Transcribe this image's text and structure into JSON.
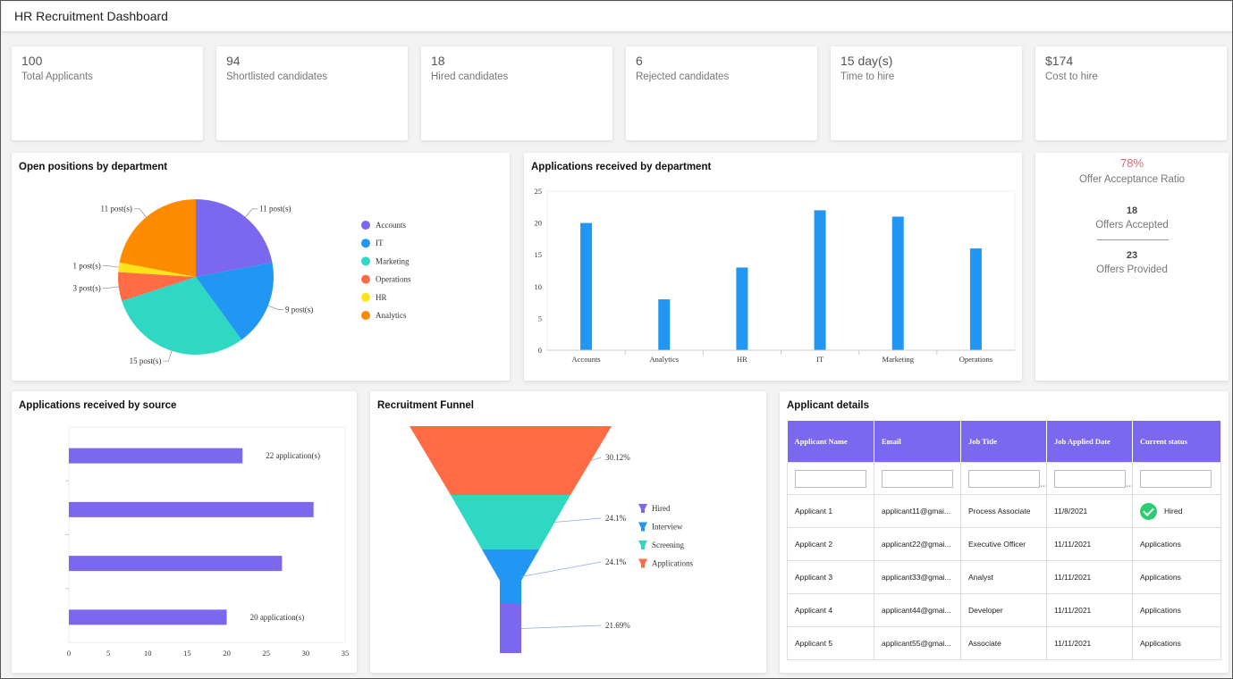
{
  "header": {
    "title": "HR Recruitment Dashboard"
  },
  "kpis": [
    {
      "value": "100",
      "label": "Total Applicants"
    },
    {
      "value": "94",
      "label": "Shortlisted candidates"
    },
    {
      "value": "18",
      "label": "Hired candidates"
    },
    {
      "value": "6",
      "label": "Rejected candidates"
    },
    {
      "value": "15 day(s)",
      "label": "Time to hire"
    },
    {
      "value": "$174",
      "label": "Cost to hire"
    }
  ],
  "open_positions": {
    "title": "Open positions by department",
    "chart_data": {
      "type": "pie",
      "categories": [
        "Accounts",
        "IT",
        "Marketing",
        "Operations",
        "HR",
        "Analytics"
      ],
      "values": [
        11,
        9,
        15,
        3,
        1,
        11
      ],
      "data_labels": [
        "11 post(s)",
        "9 post(s)",
        "15 post(s)",
        "3 post(s)",
        "1 post(s)",
        "11 post(s)"
      ],
      "colors": [
        "#7b68ee",
        "#2196f3",
        "#2ed8c3",
        "#ff6b45",
        "#ffe41a",
        "#ff8c00"
      ],
      "legend": "right"
    }
  },
  "applications_by_department": {
    "title": "Applications received by department",
    "chart_data": {
      "type": "bar",
      "categories": [
        "Accounts",
        "Analytics",
        "HR",
        "IT",
        "Marketing",
        "Operations"
      ],
      "values": [
        20,
        8,
        13,
        22,
        21,
        16
      ],
      "ylim": [
        0,
        25
      ],
      "yticks": [
        0,
        5,
        10,
        15,
        20,
        25
      ],
      "color": "#2196f3"
    }
  },
  "offer": {
    "ratio": "78%",
    "ratio_label": "Offer Acceptance Ratio",
    "accepted": "18",
    "accepted_label": "Offers Accepted",
    "provided": "23",
    "provided_label": "Offers Provided",
    "ratio_color": "#e06377"
  },
  "applications_by_source": {
    "title": "Applications received by source",
    "chart_data": {
      "type": "bar",
      "orientation": "horizontal",
      "values": [
        22,
        31,
        27,
        20
      ],
      "data_labels": [
        "22 application(s)",
        "",
        "",
        "20 application(s)"
      ],
      "xlim": [
        0,
        35
      ],
      "xticks": [
        0,
        5,
        10,
        15,
        20,
        25,
        30,
        35
      ],
      "color": "#7b68ee"
    }
  },
  "funnel": {
    "title": "Recruitment Funnel",
    "chart_data": {
      "type": "funnel",
      "categories": [
        "Applications",
        "Screening",
        "Interview",
        "Hired"
      ],
      "values": [
        30.12,
        24.1,
        24.1,
        21.69
      ],
      "data_labels": [
        "30.12%",
        "24.1%",
        "24.1%",
        "21.69%"
      ],
      "legend_order": [
        "Hired",
        "Interview",
        "Screening",
        "Applications"
      ],
      "colors": {
        "Applications": "#ff6b45",
        "Screening": "#2ed8c3",
        "Interview": "#2196f3",
        "Hired": "#7b68ee"
      }
    }
  },
  "applicants": {
    "title": "Applicant details",
    "columns": [
      "Applicant Name",
      "Email",
      "Job Title",
      "Job Applied Date",
      "Current status"
    ],
    "rows": [
      {
        "name": "Applicant 1",
        "email": "applicant11@gmai...",
        "job": "Process Associate",
        "date": "11/8/2021",
        "status": "Hired"
      },
      {
        "name": "Applicant 2",
        "email": "applicant22@gmai...",
        "job": "Executive Officer",
        "date": "11/11/2021",
        "status": "Applications"
      },
      {
        "name": "Applicant 3",
        "email": "applicant33@gmai...",
        "job": "Analyst",
        "date": "11/11/2021",
        "status": "Applications"
      },
      {
        "name": "Applicant 4",
        "email": "applicant44@gmai...",
        "job": "Developer",
        "date": "11/11/2021",
        "status": "Applications"
      },
      {
        "name": "Applicant 5",
        "email": "applicant55@gmai...",
        "job": "Associate",
        "date": "11/11/2021",
        "status": "Applications"
      }
    ]
  }
}
